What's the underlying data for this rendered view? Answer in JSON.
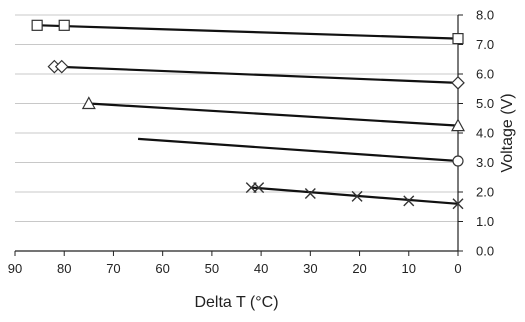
{
  "chart_data": {
    "type": "line",
    "xlabel": "Delta T (°C)",
    "ylabel": "Voltage (V)",
    "xlim": [
      90,
      0
    ],
    "ylim": [
      0,
      8
    ],
    "x_ticks": [
      "90",
      "80",
      "70",
      "60",
      "50",
      "40",
      "30",
      "20",
      "10",
      "0"
    ],
    "y_ticks": [
      "0.0",
      "1.0",
      "2.0",
      "3.0",
      "4.0",
      "5.0",
      "6.0",
      "7.0",
      "8.0"
    ],
    "x_axis_position": "bottom",
    "y_axis_position": "right",
    "grid": "horizontal",
    "legend": "none",
    "series": [
      {
        "marker": "square",
        "line": [
          [
            85,
            7.65
          ],
          [
            0,
            7.2
          ]
        ],
        "points": [
          [
            85.5,
            7.65
          ],
          [
            80,
            7.65
          ],
          [
            0,
            7.2
          ]
        ]
      },
      {
        "marker": "diamond",
        "line": [
          [
            82,
            6.25
          ],
          [
            0,
            5.7
          ]
        ],
        "points": [
          [
            82,
            6.25
          ],
          [
            80.5,
            6.25
          ],
          [
            0,
            5.7
          ]
        ]
      },
      {
        "marker": "triangle",
        "line": [
          [
            75,
            5.0
          ],
          [
            0,
            4.25
          ]
        ],
        "points": [
          [
            75,
            5.0
          ],
          [
            0,
            4.25
          ]
        ]
      },
      {
        "marker": "circle",
        "line": [
          [
            65,
            3.8
          ],
          [
            0,
            3.05
          ]
        ],
        "points": [
          [
            0,
            3.05
          ]
        ]
      },
      {
        "marker": "cross",
        "line": [
          [
            42,
            2.15
          ],
          [
            0,
            1.6
          ]
        ],
        "points": [
          [
            42,
            2.15
          ],
          [
            40.5,
            2.15
          ],
          [
            30,
            1.95
          ],
          [
            20.5,
            1.85
          ],
          [
            10,
            1.7
          ],
          [
            0,
            1.6
          ]
        ]
      }
    ]
  }
}
